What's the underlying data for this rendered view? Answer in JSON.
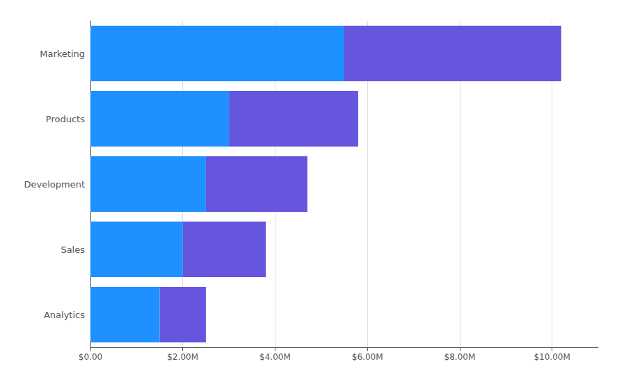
{
  "chart_data": {
    "type": "bar",
    "orientation": "horizontal",
    "stacked": true,
    "categories": [
      "Marketing",
      "Products",
      "Development",
      "Sales",
      "Analytics"
    ],
    "series": [
      {
        "color": "#1E90FF",
        "values": [
          5500000,
          3000000,
          2500000,
          2000000,
          1500000
        ]
      },
      {
        "color": "#6655DD",
        "values": [
          4700000,
          2800000,
          2200000,
          1800000,
          1000000
        ]
      }
    ],
    "xlim": [
      0,
      11000000
    ],
    "xticks": [
      {
        "value": 0,
        "label": "$0.00"
      },
      {
        "value": 2000000,
        "label": "$2.00M"
      },
      {
        "value": 4000000,
        "label": "$4.00M"
      },
      {
        "value": 6000000,
        "label": "$6.00M"
      },
      {
        "value": 8000000,
        "label": "$8.00M"
      },
      {
        "value": 10000000,
        "label": "$10.00M"
      }
    ],
    "grid": true
  }
}
